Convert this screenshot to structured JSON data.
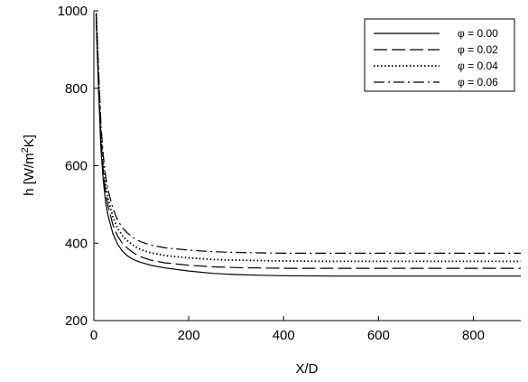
{
  "chart_data": {
    "type": "line",
    "xlabel": "X/D",
    "ylabel": {
      "prefix": "h [W/m",
      "sup": "2",
      "suffix": "K]"
    },
    "xlim": [
      0,
      900
    ],
    "ylim": [
      200,
      1000
    ],
    "x_ticks": [
      0,
      200,
      400,
      600,
      800
    ],
    "y_ticks": [
      200,
      400,
      600,
      800,
      1000
    ],
    "grid": false,
    "legend_position": "top-right",
    "series": [
      {
        "name": "φ = 0.00",
        "dash": "solid",
        "x": [
          5,
          10,
          15,
          20,
          25,
          30,
          40,
          50,
          60,
          70,
          80,
          90,
          100,
          120,
          150,
          200,
          250,
          300,
          350,
          400,
          500,
          600,
          700,
          800,
          900
        ],
        "y": [
          975,
          790,
          640,
          560,
          505,
          470,
          425,
          397,
          380,
          368,
          360,
          354,
          350,
          343,
          336,
          328,
          322,
          319,
          317,
          316,
          315,
          315,
          315,
          315,
          315
        ]
      },
      {
        "name": "φ = 0.02",
        "dash": "long-dash",
        "x": [
          5,
          10,
          15,
          20,
          25,
          30,
          40,
          50,
          60,
          70,
          80,
          90,
          100,
          120,
          150,
          200,
          250,
          300,
          350,
          400,
          500,
          600,
          700,
          800,
          900
        ],
        "y": [
          985,
          810,
          665,
          585,
          530,
          495,
          448,
          418,
          400,
          388,
          378,
          370,
          364,
          356,
          349,
          343,
          339,
          337,
          336,
          335,
          335,
          335,
          335,
          335,
          335
        ]
      },
      {
        "name": "φ = 0.04",
        "dash": "dotted",
        "x": [
          5,
          10,
          15,
          20,
          25,
          30,
          40,
          50,
          60,
          70,
          80,
          90,
          100,
          120,
          150,
          200,
          250,
          300,
          350,
          400,
          500,
          600,
          700,
          800,
          900
        ],
        "y": [
          990,
          825,
          685,
          605,
          550,
          515,
          468,
          438,
          420,
          407,
          397,
          389,
          383,
          375,
          368,
          362,
          358,
          356,
          355,
          354,
          353,
          353,
          353,
          353,
          353
        ]
      },
      {
        "name": "φ = 0.06",
        "dash": "dash-dot",
        "x": [
          5,
          10,
          15,
          20,
          25,
          30,
          40,
          50,
          60,
          70,
          80,
          90,
          100,
          120,
          150,
          200,
          250,
          300,
          350,
          400,
          500,
          600,
          700,
          800,
          900
        ],
        "y": [
          995,
          840,
          705,
          625,
          572,
          537,
          490,
          460,
          440,
          427,
          417,
          409,
          403,
          395,
          388,
          382,
          378,
          376,
          375,
          374,
          374,
          374,
          374,
          374,
          374
        ]
      }
    ]
  }
}
